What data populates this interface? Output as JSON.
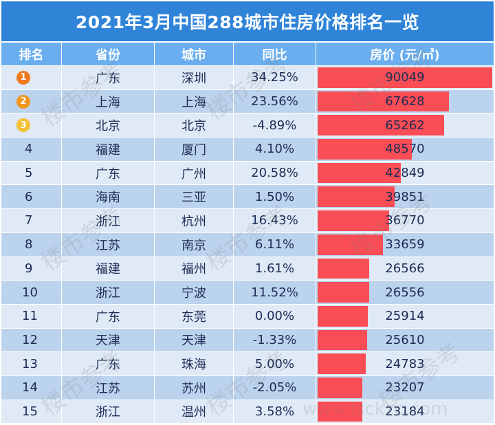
{
  "title": "2021年3月中国288城市住房价格排名一览",
  "headers": [
    "排名",
    "省份",
    "城市",
    "同比",
    "房价 (元/㎡)"
  ],
  "colors": {
    "title_bg": "#2f84d8",
    "header_bg": "#6aaeef",
    "bar": "#fb4d55",
    "medals": [
      "#ef7a1c",
      "#f0951f",
      "#f4c133"
    ]
  },
  "watermark": "楼市参考",
  "watermark_url": "www.lsckzc.com",
  "max_price": 90049,
  "rows": [
    {
      "rank": "1",
      "province": "广东",
      "city": "深圳",
      "yoy": "34.25%",
      "price": 90049
    },
    {
      "rank": "2",
      "province": "上海",
      "city": "上海",
      "yoy": "23.56%",
      "price": 67628
    },
    {
      "rank": "3",
      "province": "北京",
      "city": "北京",
      "yoy": "-4.89%",
      "price": 65262
    },
    {
      "rank": "4",
      "province": "福建",
      "city": "厦门",
      "yoy": "4.10%",
      "price": 48570
    },
    {
      "rank": "5",
      "province": "广东",
      "city": "广州",
      "yoy": "20.58%",
      "price": 42849
    },
    {
      "rank": "6",
      "province": "海南",
      "city": "三亚",
      "yoy": "1.50%",
      "price": 39851
    },
    {
      "rank": "7",
      "province": "浙江",
      "city": "杭州",
      "yoy": "16.43%",
      "price": 36770
    },
    {
      "rank": "8",
      "province": "江苏",
      "city": "南京",
      "yoy": "6.11%",
      "price": 33659
    },
    {
      "rank": "9",
      "province": "福建",
      "city": "福州",
      "yoy": "1.61%",
      "price": 26566
    },
    {
      "rank": "10",
      "province": "浙江",
      "city": "宁波",
      "yoy": "11.52%",
      "price": 26556
    },
    {
      "rank": "11",
      "province": "广东",
      "city": "东莞",
      "yoy": "0.00%",
      "price": 25914
    },
    {
      "rank": "12",
      "province": "天津",
      "city": "天津",
      "yoy": "-1.33%",
      "price": 25610
    },
    {
      "rank": "13",
      "province": "广东",
      "city": "珠海",
      "yoy": "5.00%",
      "price": 24783
    },
    {
      "rank": "14",
      "province": "江苏",
      "city": "苏州",
      "yoy": "-2.05%",
      "price": 23207
    },
    {
      "rank": "15",
      "province": "浙江",
      "city": "温州",
      "yoy": "3.58%",
      "price": 23184
    }
  ]
}
